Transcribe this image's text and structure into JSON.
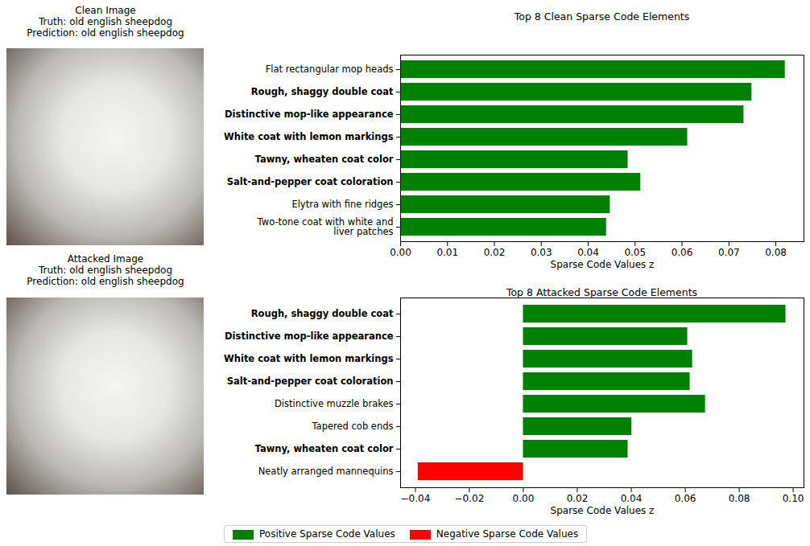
{
  "images": [
    {
      "lines": [
        "Clean Image",
        "Truth: old english sheepdog",
        "Prediction: old english sheepdog"
      ]
    },
    {
      "lines": [
        "Attacked Image",
        "Truth: old english sheepdog",
        "Prediction: old english sheepdog"
      ]
    }
  ],
  "chart_data": [
    {
      "type": "bar",
      "orientation": "horizontal",
      "title": "Top 8 Clean Sparse Code Elements",
      "x_label": "Sparse Code Values z",
      "categories": [
        "Flat rectangular mop heads",
        "Rough, shaggy double coat",
        "Distinctive mop-like appearance",
        "White coat with lemon markings",
        "Tawny, wheaten coat color",
        "Salt-and-pepper coat coloration",
        "Elytra with fine ridges",
        "Two-tone coat with white and liver patches"
      ],
      "values": [
        0.082,
        0.0749,
        0.0732,
        0.0612,
        0.0485,
        0.0512,
        0.0447,
        0.0439
      ],
      "colors": [
        "#008000",
        "#008000",
        "#008000",
        "#008000",
        "#008000",
        "#008000",
        "#008000",
        "#008000"
      ],
      "xlim": [
        0,
        0.086
      ],
      "xticks": [
        {
          "value": 0,
          "label": "0.00"
        },
        {
          "value": 0.01,
          "label": "0.01"
        },
        {
          "value": 0.02,
          "label": "0.02"
        },
        {
          "value": 0.03,
          "label": "0.03"
        },
        {
          "value": 0.04,
          "label": "0.04"
        },
        {
          "value": 0.05,
          "label": "0.05"
        },
        {
          "value": 0.06,
          "label": "0.06"
        },
        {
          "value": 0.07,
          "label": "0.07"
        },
        {
          "value": 0.08,
          "label": "0.08"
        }
      ],
      "grid": false
    },
    {
      "type": "bar",
      "orientation": "horizontal",
      "title": "Top 8 Attacked Sparse Code Elements",
      "x_label": "Sparse Code Values z",
      "categories": [
        "Rough, shaggy double coat",
        "Distinctive mop-like appearance",
        "White coat with lemon markings",
        "Salt-and-pepper coat coloration",
        "Distinctive muzzle brakes",
        "Tapered cob ends",
        "Tawny, wheaten coat color",
        "Neatly arranged mannequins"
      ],
      "values": [
        0.0973,
        0.0609,
        0.0627,
        0.0618,
        0.0675,
        0.0402,
        0.0388,
        -0.039
      ],
      "colors": [
        "#008000",
        "#008000",
        "#008000",
        "#008000",
        "#008000",
        "#008000",
        "#008000",
        "#ff0000"
      ],
      "xlim": [
        -0.0455,
        0.104
      ],
      "xticks": [
        {
          "value": -0.04,
          "label": "−0.04"
        },
        {
          "value": -0.02,
          "label": "−0.02"
        },
        {
          "value": 0,
          "label": "0.00"
        },
        {
          "value": 0.02,
          "label": "0.02"
        },
        {
          "value": 0.04,
          "label": "0.04"
        },
        {
          "value": 0.06,
          "label": "0.06"
        },
        {
          "value": 0.08,
          "label": "0.08"
        },
        {
          "value": 0.1,
          "label": "0.10"
        }
      ],
      "grid": false
    }
  ],
  "figure_legend": {
    "position": "bottom",
    "entries": [
      {
        "name": "Positive Sparse Code Values",
        "color": "#008000"
      },
      {
        "name": "Negative Sparse Code Values",
        "color": "#ff0000"
      }
    ]
  }
}
